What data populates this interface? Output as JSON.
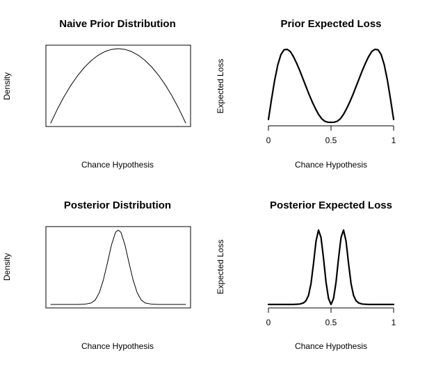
{
  "chart_data": [
    {
      "type": "line",
      "title": "Naive Prior Distribution",
      "xlabel": "Chance Hypothesis",
      "ylabel": "Density",
      "box": true,
      "axis": false,
      "xlim": [
        0,
        1
      ],
      "ylim": [
        0,
        1.5
      ],
      "series": [
        {
          "x": [
            0,
            0.05,
            0.1,
            0.15,
            0.2,
            0.25,
            0.3,
            0.35,
            0.4,
            0.45,
            0.5,
            0.55,
            0.6,
            0.65,
            0.7,
            0.75,
            0.8,
            0.85,
            0.9,
            0.95,
            1
          ],
          "y": [
            0,
            0.285,
            0.54,
            0.765,
            0.96,
            1.125,
            1.26,
            1.365,
            1.44,
            1.485,
            1.5,
            1.485,
            1.44,
            1.365,
            1.26,
            1.125,
            0.96,
            0.765,
            0.54,
            0.285,
            0
          ],
          "stroke_width": 1
        }
      ]
    },
    {
      "type": "line",
      "title": "Prior Expected Loss",
      "xlabel": "Chance Hypothesis",
      "ylabel": "Expected Loss",
      "box": false,
      "axis": true,
      "xticks": [
        0,
        0.5,
        1
      ],
      "xticklabels": [
        "0",
        "0.5",
        "1"
      ],
      "xlim": [
        0,
        1
      ],
      "ylim": [
        0,
        1
      ],
      "series": [
        {
          "x": [
            0,
            0.025,
            0.05,
            0.075,
            0.1,
            0.125,
            0.15,
            0.175,
            0.2,
            0.225,
            0.25,
            0.275,
            0.3,
            0.325,
            0.35,
            0.375,
            0.4,
            0.425,
            0.45,
            0.475,
            0.5,
            0.525,
            0.55,
            0.575,
            0.6,
            0.625,
            0.65,
            0.675,
            0.7,
            0.725,
            0.75,
            0.775,
            0.8,
            0.825,
            0.85,
            0.875,
            0.9,
            0.925,
            0.95,
            0.975,
            1
          ],
          "y": [
            0.04,
            0.32,
            0.58,
            0.79,
            0.93,
            0.995,
            1.0,
            0.97,
            0.9,
            0.81,
            0.71,
            0.6,
            0.49,
            0.38,
            0.28,
            0.19,
            0.11,
            0.05,
            0.015,
            0.002,
            0,
            0.002,
            0.015,
            0.05,
            0.11,
            0.19,
            0.28,
            0.38,
            0.49,
            0.6,
            0.71,
            0.81,
            0.9,
            0.97,
            1.0,
            0.995,
            0.93,
            0.79,
            0.58,
            0.32,
            0.04
          ],
          "stroke_width": 2.2
        }
      ]
    },
    {
      "type": "line",
      "title": "Posterior Distribution",
      "xlabel": "Chance Hypothesis",
      "ylabel": "Density",
      "box": true,
      "axis": false,
      "xlim": [
        0,
        1
      ],
      "ylim": [
        0,
        1
      ],
      "series": [
        {
          "x": [
            0,
            0.05,
            0.1,
            0.15,
            0.2,
            0.25,
            0.3,
            0.33,
            0.36,
            0.39,
            0.42,
            0.45,
            0.48,
            0.5,
            0.52,
            0.55,
            0.58,
            0.61,
            0.64,
            0.67,
            0.7,
            0.75,
            0.8,
            0.85,
            0.9,
            0.95,
            1
          ],
          "y": [
            0,
            0,
            0,
            0,
            0,
            0.003,
            0.02,
            0.06,
            0.16,
            0.33,
            0.56,
            0.8,
            0.97,
            1.0,
            0.97,
            0.8,
            0.56,
            0.33,
            0.16,
            0.06,
            0.02,
            0.003,
            0,
            0,
            0,
            0,
            0
          ],
          "stroke_width": 1
        }
      ]
    },
    {
      "type": "line",
      "title": "Posterior Expected Loss",
      "xlabel": "Chance Hypothesis",
      "ylabel": "Expected Loss",
      "box": false,
      "axis": true,
      "xticks": [
        0,
        0.5,
        1
      ],
      "xticklabels": [
        "0",
        "0.5",
        "1"
      ],
      "xlim": [
        0,
        1
      ],
      "ylim": [
        0,
        1
      ],
      "series": [
        {
          "x": [
            0,
            0.05,
            0.1,
            0.15,
            0.2,
            0.25,
            0.28,
            0.3,
            0.32,
            0.34,
            0.36,
            0.38,
            0.4,
            0.42,
            0.44,
            0.46,
            0.48,
            0.5,
            0.52,
            0.54,
            0.56,
            0.58,
            0.6,
            0.62,
            0.64,
            0.66,
            0.68,
            0.7,
            0.72,
            0.75,
            0.8,
            0.85,
            0.9,
            0.95,
            1
          ],
          "y": [
            0,
            0,
            0,
            0,
            0,
            0.005,
            0.02,
            0.05,
            0.12,
            0.28,
            0.55,
            0.85,
            1.0,
            0.9,
            0.62,
            0.3,
            0.08,
            0,
            0.08,
            0.3,
            0.62,
            0.9,
            1.0,
            0.85,
            0.55,
            0.28,
            0.12,
            0.05,
            0.02,
            0.005,
            0,
            0,
            0,
            0,
            0
          ],
          "stroke_width": 2.2
        }
      ]
    }
  ]
}
